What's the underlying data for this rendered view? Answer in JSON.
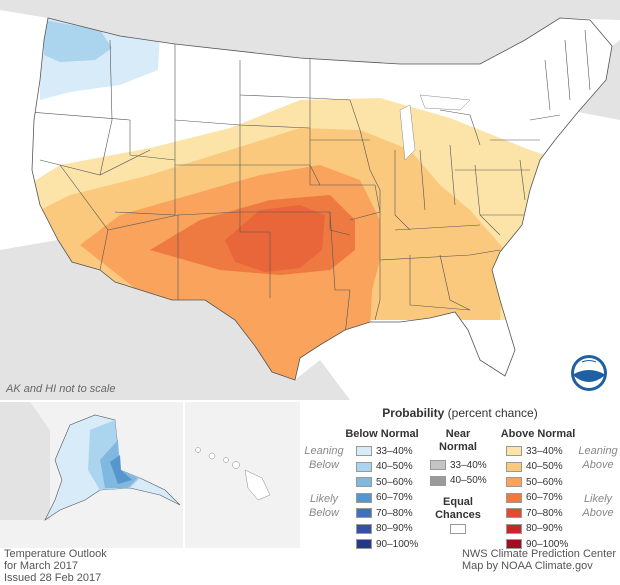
{
  "map": {
    "note": "AK and HI not to scale",
    "legend": {
      "title": "Probability",
      "title_suffix": "(percent chance)",
      "below_normal": {
        "heading": "Below Normal",
        "leaning_label": "Leaning Below",
        "likely_label": "Likely Below",
        "bins": [
          {
            "label": "33–40%",
            "color": "#d7ecf8"
          },
          {
            "label": "40–50%",
            "color": "#abd4ee"
          },
          {
            "label": "50–60%",
            "color": "#80b8df"
          },
          {
            "label": "60–70%",
            "color": "#5796cc"
          },
          {
            "label": "70–80%",
            "color": "#4271b5"
          },
          {
            "label": "80–90%",
            "color": "#34529f"
          },
          {
            "label": "90–100%",
            "color": "#263888"
          }
        ]
      },
      "near_normal": {
        "heading_line1": "Near",
        "heading_line2": "Normal",
        "bins": [
          {
            "label": "33–40%",
            "color": "#c4c4c4"
          },
          {
            "label": "40–50%",
            "color": "#9a9a9a"
          }
        ]
      },
      "equal_chances": {
        "heading_line1": "Equal",
        "heading_line2": "Chances",
        "color": "#ffffff"
      },
      "above_normal": {
        "heading": "Above Normal",
        "leaning_label": "Leaning Above",
        "likely_label": "Likely Above",
        "bins": [
          {
            "label": "33–40%",
            "color": "#fce4a8"
          },
          {
            "label": "40–50%",
            "color": "#fbc97d"
          },
          {
            "label": "50–60%",
            "color": "#f9a35c"
          },
          {
            "label": "60–70%",
            "color": "#ef7a41"
          },
          {
            "label": "70–80%",
            "color": "#e04c30"
          },
          {
            "label": "80–90%",
            "color": "#c8262a"
          },
          {
            "label": "90–100%",
            "color": "#a00e24"
          }
        ]
      }
    },
    "credits": {
      "left_line1": "Temperature Outlook",
      "left_line2": "for March 2017",
      "left_line3": "Issued 28 Feb 2017",
      "right_line1": "NWS Climate Prediction Center",
      "right_line2": "Map by NOAA Climate.gov"
    },
    "logo_text": "NOAA",
    "colors": {
      "background": "#ffffff",
      "land_outside": "#e3e3e3",
      "state_border": "#555555",
      "panel_bg": "#f2f2f2"
    }
  }
}
